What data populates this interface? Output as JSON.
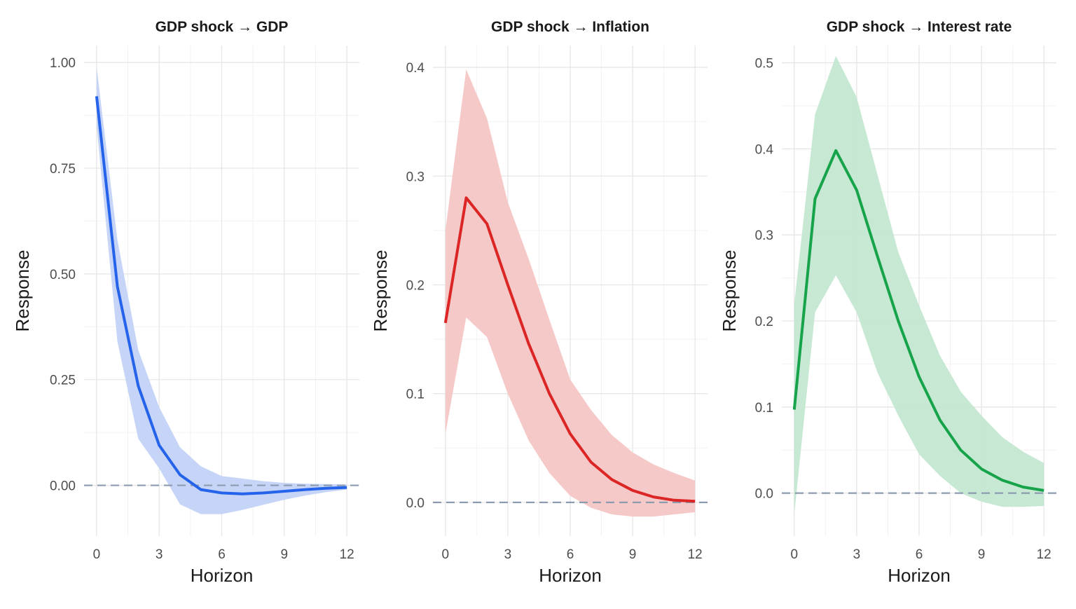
{
  "chart_data": [
    {
      "type": "line",
      "title": "GDP shock → GDP",
      "xlabel": "Horizon",
      "ylabel": "Response",
      "xlim": [
        -0.6,
        12.6
      ],
      "ylim": [
        -0.12,
        1.04
      ],
      "x_ticks": [
        0,
        3,
        6,
        9,
        12
      ],
      "y_ticks": [
        0.0,
        0.25,
        0.5,
        0.75,
        1.0
      ],
      "y_tick_labels": [
        "0.00",
        "0.25",
        "0.50",
        "0.75",
        "1.00"
      ],
      "zero_line": true,
      "grid": true,
      "legend": "none",
      "x": [
        0,
        1,
        2,
        3,
        4,
        5,
        6,
        7,
        8,
        9,
        10,
        11,
        12
      ],
      "series": [
        {
          "color": "#2563eb",
          "band_color": "#c3d3f7",
          "values": [
            0.92,
            0.47,
            0.235,
            0.095,
            0.025,
            -0.01,
            -0.018,
            -0.02,
            -0.018,
            -0.014,
            -0.01,
            -0.007,
            -0.005
          ],
          "lower": [
            0.85,
            0.34,
            0.11,
            0.04,
            -0.045,
            -0.068,
            -0.068,
            -0.058,
            -0.046,
            -0.034,
            -0.024,
            -0.016,
            -0.01
          ],
          "upper": [
            0.99,
            0.58,
            0.32,
            0.185,
            0.09,
            0.045,
            0.022,
            0.016,
            0.01,
            0.006,
            0.004,
            0.003,
            0.002
          ]
        }
      ]
    },
    {
      "type": "line",
      "title": "GDP shock → Inflation",
      "xlabel": "Horizon",
      "ylabel": "Response",
      "xlim": [
        -0.6,
        12.6
      ],
      "ylim": [
        -0.031,
        0.42
      ],
      "x_ticks": [
        0,
        3,
        6,
        9,
        12
      ],
      "y_ticks": [
        0.0,
        0.1,
        0.2,
        0.3,
        0.4
      ],
      "y_tick_labels": [
        "0.0",
        "0.1",
        "0.2",
        "0.3",
        "0.4"
      ],
      "zero_line": true,
      "grid": true,
      "legend": "none",
      "x": [
        0,
        1,
        2,
        3,
        4,
        5,
        6,
        7,
        8,
        9,
        10,
        11,
        12
      ],
      "series": [
        {
          "color": "#dc2626",
          "band_color": "#f5c6c6",
          "values": [
            0.165,
            0.28,
            0.256,
            0.2,
            0.146,
            0.1,
            0.063,
            0.037,
            0.021,
            0.011,
            0.005,
            0.002,
            0.001
          ],
          "lower": [
            0.063,
            0.17,
            0.152,
            0.1,
            0.057,
            0.027,
            0.006,
            -0.005,
            -0.011,
            -0.013,
            -0.013,
            -0.011,
            -0.009
          ],
          "upper": [
            0.25,
            0.398,
            0.353,
            0.276,
            0.224,
            0.168,
            0.113,
            0.085,
            0.062,
            0.046,
            0.035,
            0.027,
            0.02
          ]
        }
      ]
    },
    {
      "type": "line",
      "title": "GDP shock → Interest rate",
      "xlabel": "Horizon",
      "ylabel": "Response",
      "xlim": [
        -0.6,
        12.6
      ],
      "ylim": [
        -0.05,
        0.52
      ],
      "x_ticks": [
        0,
        3,
        6,
        9,
        12
      ],
      "y_ticks": [
        0.0,
        0.1,
        0.2,
        0.3,
        0.4,
        0.5
      ],
      "y_tick_labels": [
        "0.0",
        "0.1",
        "0.2",
        "0.3",
        "0.4",
        "0.5"
      ],
      "zero_line": true,
      "grid": true,
      "legend": "none",
      "x": [
        0,
        1,
        2,
        3,
        4,
        5,
        6,
        7,
        8,
        9,
        10,
        11,
        12
      ],
      "series": [
        {
          "color": "#16a34a",
          "band_color": "#c4e8d1",
          "values": [
            0.097,
            0.342,
            0.398,
            0.352,
            0.275,
            0.2,
            0.135,
            0.085,
            0.05,
            0.028,
            0.015,
            0.007,
            0.003
          ],
          "lower": [
            -0.025,
            0.21,
            0.253,
            0.21,
            0.14,
            0.09,
            0.045,
            0.02,
            0.0,
            -0.01,
            -0.016,
            -0.016,
            -0.015
          ],
          "upper": [
            0.22,
            0.44,
            0.508,
            0.46,
            0.37,
            0.28,
            0.218,
            0.16,
            0.118,
            0.09,
            0.065,
            0.048,
            0.035
          ]
        }
      ]
    }
  ]
}
